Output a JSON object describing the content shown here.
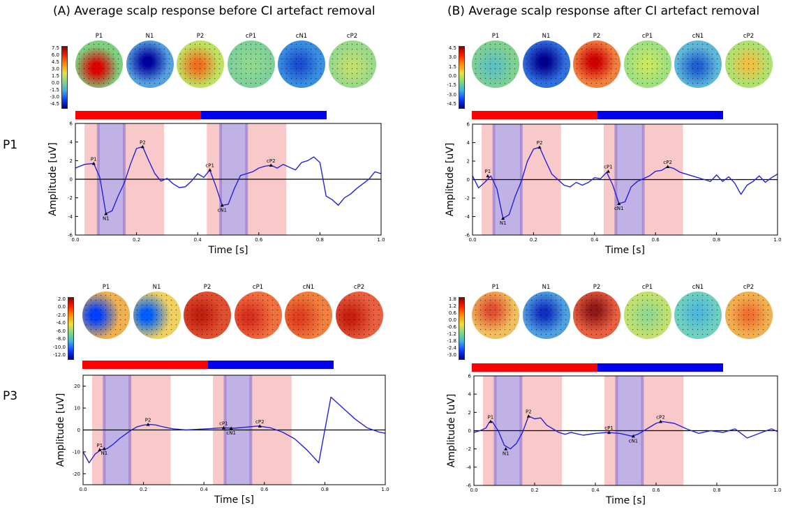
{
  "titles": {
    "left": "(A) Average scalp response before CI artefact removal",
    "right": "(B) Average scalp response after CI artefact removal"
  },
  "row_labels": [
    "P1",
    "P3"
  ],
  "colors": {
    "red_bar": "#ff0000",
    "blue_bar": "#0000ee",
    "shade_red": "#f5a3a3",
    "shade_blue": "#a8a8f0",
    "trace": "#2222dd"
  },
  "panels": [
    {
      "id": "A-P1",
      "colorbar_ticks": [
        "7.5",
        "6.0",
        "4.5",
        "3.0",
        "1.5",
        "0.0",
        "-1.5",
        "-3.0",
        "-4.5"
      ],
      "topos": [
        {
          "label": "P1",
          "base": "#7ecf7e",
          "blob": "#e00000",
          "blob_x": 45,
          "blob_y": 58
        },
        {
          "label": "N1",
          "base": "#55a0dd",
          "blob": "#0000a0",
          "blob_x": 45,
          "blob_y": 45
        },
        {
          "label": "P2",
          "base": "#bfe060",
          "blob": "#f07020",
          "blob_x": 45,
          "blob_y": 52
        },
        {
          "label": "cP1",
          "base": "#80d09a",
          "blob": "#90d890",
          "blob_x": 50,
          "blob_y": 50
        },
        {
          "label": "cN1",
          "base": "#3a8ee0",
          "blob": "#1a4fd0",
          "blob_x": 45,
          "blob_y": 50
        },
        {
          "label": "cP2",
          "base": "#9ad88a",
          "blob": "#c0e070",
          "blob_x": 50,
          "blob_y": 55
        }
      ],
      "chart_data": {
        "type": "line",
        "xlabel": "Time [s]",
        "ylabel": "Amplitude [uV]",
        "xlim": [
          0.0,
          1.0
        ],
        "ylim": [
          -6,
          6
        ],
        "xticks": [
          "0.0",
          "0.2",
          "0.4",
          "0.6",
          "0.8",
          "1.0"
        ],
        "yticks": [
          "-6",
          "-4",
          "-2",
          "0",
          "2",
          "4",
          "6"
        ],
        "x": [
          0.0,
          0.03,
          0.06,
          0.08,
          0.1,
          0.12,
          0.14,
          0.16,
          0.18,
          0.2,
          0.22,
          0.24,
          0.26,
          0.28,
          0.3,
          0.32,
          0.34,
          0.36,
          0.38,
          0.4,
          0.42,
          0.44,
          0.46,
          0.48,
          0.5,
          0.52,
          0.54,
          0.56,
          0.58,
          0.6,
          0.62,
          0.64,
          0.66,
          0.68,
          0.7,
          0.72,
          0.74,
          0.76,
          0.78,
          0.8,
          0.82,
          0.84,
          0.86,
          0.88,
          0.9,
          0.92,
          0.94,
          0.96,
          0.98,
          1.0
        ],
        "y": [
          1.2,
          1.6,
          1.7,
          0.2,
          -3.7,
          -3.4,
          -1.8,
          -0.4,
          1.6,
          3.3,
          3.5,
          2.0,
          0.6,
          -0.2,
          0.1,
          -0.5,
          -0.9,
          -0.8,
          -0.2,
          0.6,
          0.2,
          1.0,
          -0.8,
          -2.8,
          -2.7,
          -1.0,
          0.4,
          0.6,
          0.8,
          1.2,
          1.4,
          1.5,
          1.2,
          1.6,
          1.3,
          1.0,
          1.8,
          2.0,
          2.4,
          1.8,
          -1.8,
          -2.2,
          -2.8,
          -2.0,
          -1.6,
          -1.0,
          -0.5,
          0.0,
          0.8,
          0.6
        ],
        "peaks": [
          {
            "label": "P1",
            "x": 0.06,
            "y": 1.7
          },
          {
            "label": "N1",
            "x": 0.1,
            "y": -3.7
          },
          {
            "label": "P2",
            "x": 0.22,
            "y": 3.5
          },
          {
            "label": "cP1",
            "x": 0.44,
            "y": 1.0
          },
          {
            "label": "cN1",
            "x": 0.48,
            "y": -2.8
          },
          {
            "label": "cP2",
            "x": 0.64,
            "y": 1.5
          }
        ],
        "red_spans": [
          [
            0.03,
            0.29
          ],
          [
            0.43,
            0.69
          ]
        ],
        "blue_spans": [
          [
            0.075,
            0.16
          ],
          [
            0.475,
            0.56
          ]
        ]
      }
    },
    {
      "id": "B-P1",
      "colorbar_ticks": [
        "4.5",
        "3.0",
        "1.5",
        "0.0",
        "-1.5",
        "-3.0",
        "-4.5"
      ],
      "topos": [
        {
          "label": "P1",
          "base": "#80d090",
          "blob": "#60c0c0",
          "blob_x": 45,
          "blob_y": 55
        },
        {
          "label": "N1",
          "base": "#3070dd",
          "blob": "#000090",
          "blob_x": 45,
          "blob_y": 45
        },
        {
          "label": "P2",
          "base": "#f08040",
          "blob": "#d00000",
          "blob_x": 45,
          "blob_y": 45
        },
        {
          "label": "cP1",
          "base": "#a0e080",
          "blob": "#c8e860",
          "blob_x": 50,
          "blob_y": 50
        },
        {
          "label": "cN1",
          "base": "#60b8d8",
          "blob": "#2060d0",
          "blob_x": 48,
          "blob_y": 55
        },
        {
          "label": "cP2",
          "base": "#b0e070",
          "blob": "#f0c040",
          "blob_x": 50,
          "blob_y": 50
        }
      ],
      "chart_data": {
        "type": "line",
        "xlabel": "Time [s]",
        "ylabel": "Amplitude [uV]",
        "xlim": [
          0.0,
          1.0
        ],
        "ylim": [
          -6,
          6
        ],
        "xticks": [
          "0.0",
          "0.2",
          "0.4",
          "0.6",
          "0.8",
          "1.0"
        ],
        "yticks": [
          "-6",
          "-4",
          "-2",
          "0",
          "2",
          "4",
          "6"
        ],
        "x": [
          0.0,
          0.02,
          0.04,
          0.06,
          0.08,
          0.1,
          0.12,
          0.14,
          0.16,
          0.18,
          0.2,
          0.22,
          0.24,
          0.26,
          0.28,
          0.3,
          0.32,
          0.34,
          0.36,
          0.38,
          0.4,
          0.42,
          0.44,
          0.46,
          0.48,
          0.5,
          0.52,
          0.54,
          0.56,
          0.58,
          0.6,
          0.62,
          0.64,
          0.66,
          0.68,
          0.7,
          0.72,
          0.74,
          0.76,
          0.78,
          0.8,
          0.82,
          0.84,
          0.86,
          0.88,
          0.9,
          0.92,
          0.94,
          0.96,
          0.98,
          1.0
        ],
        "y": [
          0.4,
          -0.9,
          -0.3,
          0.4,
          -1.0,
          -4.2,
          -3.8,
          -1.8,
          -0.2,
          2.0,
          3.3,
          3.5,
          2.0,
          0.6,
          0.0,
          -0.6,
          -0.8,
          -0.3,
          -0.6,
          -0.3,
          0.2,
          0.1,
          0.8,
          -0.6,
          -2.6,
          -2.4,
          -0.8,
          -0.2,
          0.1,
          0.4,
          0.9,
          1.0,
          1.4,
          1.2,
          0.8,
          0.6,
          0.4,
          0.2,
          0.0,
          -0.2,
          0.5,
          -0.2,
          0.3,
          -0.4,
          -1.6,
          -0.6,
          -0.2,
          0.4,
          -0.3,
          0.2,
          0.6
        ],
        "peaks": [
          {
            "label": "P1",
            "x": 0.05,
            "y": 0.4
          },
          {
            "label": "N1",
            "x": 0.1,
            "y": -4.2
          },
          {
            "label": "P2",
            "x": 0.22,
            "y": 3.5
          },
          {
            "label": "cP1",
            "x": 0.445,
            "y": 0.9
          },
          {
            "label": "cN1",
            "x": 0.48,
            "y": -2.6
          },
          {
            "label": "cP2",
            "x": 0.64,
            "y": 1.4
          }
        ],
        "red_spans": [
          [
            0.03,
            0.29
          ],
          [
            0.43,
            0.69
          ]
        ],
        "blue_spans": [
          [
            0.07,
            0.16
          ],
          [
            0.47,
            0.56
          ]
        ]
      }
    },
    {
      "id": "A-P3",
      "colorbar_ticks": [
        "2.0",
        "0.0",
        "-2.0",
        "-4.0",
        "-6.0",
        "-8.0",
        "-10.0",
        "-12.0"
      ],
      "topos": [
        {
          "label": "P1",
          "base": "#f0b050",
          "blob": "#0040ff",
          "blob_x": 28,
          "blob_y": 50
        },
        {
          "label": "N1",
          "base": "#f0d060",
          "blob": "#0060ff",
          "blob_x": 28,
          "blob_y": 50
        },
        {
          "label": "P2",
          "base": "#e05030",
          "blob": "#c02010",
          "blob_x": 35,
          "blob_y": 50
        },
        {
          "label": "cP1",
          "base": "#f07040",
          "blob": "#d83020",
          "blob_x": 30,
          "blob_y": 55
        },
        {
          "label": "cN1",
          "base": "#f08040",
          "blob": "#e04020",
          "blob_x": 30,
          "blob_y": 55
        },
        {
          "label": "cP2",
          "base": "#e86040",
          "blob": "#c82010",
          "blob_x": 30,
          "blob_y": 55
        }
      ],
      "chart_data": {
        "type": "line",
        "xlabel": "Time [s]",
        "ylabel": "Amplitude [uV]",
        "xlim": [
          0.0,
          1.0
        ],
        "ylim": [
          -25,
          25
        ],
        "xticks": [
          "0.0",
          "0.2",
          "0.4",
          "0.6",
          "0.8",
          "1.0"
        ],
        "yticks": [
          "-20",
          "-10",
          "0",
          "10",
          "20"
        ],
        "x": [
          0.0,
          0.02,
          0.04,
          0.06,
          0.08,
          0.1,
          0.12,
          0.14,
          0.16,
          0.18,
          0.2,
          0.22,
          0.24,
          0.26,
          0.28,
          0.3,
          0.34,
          0.38,
          0.42,
          0.46,
          0.5,
          0.54,
          0.58,
          0.62,
          0.66,
          0.7,
          0.74,
          0.76,
          0.78,
          0.8,
          0.82,
          0.86,
          0.9,
          0.94,
          0.98,
          1.0
        ],
        "y": [
          -10,
          -15,
          -11,
          -9,
          -8.5,
          -6.5,
          -4,
          -2,
          0,
          1.5,
          2.2,
          2.5,
          2.3,
          1.6,
          1.0,
          0.5,
          0,
          0.3,
          0.6,
          1.0,
          0.8,
          1.3,
          1.8,
          1.0,
          -1,
          -4,
          -9,
          -12,
          -15,
          0,
          15,
          10,
          5,
          1,
          -1,
          -1.5
        ],
        "peaks": [
          {
            "label": "P1",
            "x": 0.055,
            "y": -9
          },
          {
            "label": "N1",
            "x": 0.07,
            "y": -8.5
          },
          {
            "label": "P2",
            "x": 0.215,
            "y": 2.5
          },
          {
            "label": "cP1",
            "x": 0.465,
            "y": 1.0
          },
          {
            "label": "cN1",
            "x": 0.49,
            "y": 0.8
          },
          {
            "label": "cP2",
            "x": 0.585,
            "y": 1.8
          }
        ],
        "red_spans": [
          [
            0.03,
            0.29
          ],
          [
            0.43,
            0.69
          ]
        ],
        "blue_spans": [
          [
            0.07,
            0.155
          ],
          [
            0.47,
            0.555
          ]
        ]
      }
    },
    {
      "id": "B-P3",
      "colorbar_ticks": [
        "1.8",
        "1.2",
        "0.6",
        "0.0",
        "-0.6",
        "-1.2",
        "-1.8",
        "-2.4",
        "-3.0"
      ],
      "topos": [
        {
          "label": "P1",
          "base": "#f0c060",
          "blob": "#e05030",
          "blob_x": 42,
          "blob_y": 40
        },
        {
          "label": "N1",
          "base": "#50a0e0",
          "blob": "#1030c0",
          "blob_x": 45,
          "blob_y": 45
        },
        {
          "label": "P2",
          "base": "#e86040",
          "blob": "#901818",
          "blob_x": 45,
          "blob_y": 40
        },
        {
          "label": "cP1",
          "base": "#c0e070",
          "blob": "#90d890",
          "blob_x": 50,
          "blob_y": 50
        },
        {
          "label": "cN1",
          "base": "#70d0c0",
          "blob": "#50b8d8",
          "blob_x": 50,
          "blob_y": 45
        },
        {
          "label": "cP2",
          "base": "#f0b050",
          "blob": "#f07030",
          "blob_x": 50,
          "blob_y": 50
        }
      ],
      "chart_data": {
        "type": "line",
        "xlabel": "Time [s]",
        "ylabel": "Amplitude [uV]",
        "xlim": [
          0.0,
          1.0
        ],
        "ylim": [
          -6,
          6
        ],
        "xticks": [
          "0.0",
          "0.2",
          "0.4",
          "0.6",
          "0.8",
          "1.0"
        ],
        "yticks": [
          "-6",
          "-4",
          "-2",
          "0",
          "2",
          "4",
          "6"
        ],
        "x": [
          0.0,
          0.02,
          0.04,
          0.05,
          0.06,
          0.08,
          0.1,
          0.12,
          0.14,
          0.16,
          0.18,
          0.2,
          0.22,
          0.24,
          0.26,
          0.28,
          0.3,
          0.32,
          0.36,
          0.4,
          0.44,
          0.48,
          0.52,
          0.54,
          0.56,
          0.6,
          0.62,
          0.64,
          0.66,
          0.7,
          0.74,
          0.78,
          0.82,
          0.86,
          0.9,
          0.94,
          0.98,
          1.0
        ],
        "y": [
          -0.2,
          0.0,
          0.3,
          0.9,
          1.0,
          0.0,
          -1.6,
          -2.0,
          -1.4,
          -0.2,
          1.6,
          1.3,
          1.4,
          0.6,
          0.2,
          -0.2,
          -0.4,
          -0.2,
          -0.5,
          -0.3,
          -0.2,
          -0.3,
          -0.6,
          -0.4,
          0.0,
          0.8,
          1.0,
          0.9,
          0.8,
          0.2,
          -0.3,
          0.0,
          -0.2,
          0.2,
          -0.8,
          -0.3,
          0.2,
          -0.1
        ],
        "peaks": [
          {
            "label": "P1",
            "x": 0.055,
            "y": 1.0
          },
          {
            "label": "N1",
            "x": 0.105,
            "y": -2.0
          },
          {
            "label": "P2",
            "x": 0.18,
            "y": 1.6
          },
          {
            "label": "cP1",
            "x": 0.445,
            "y": -0.2
          },
          {
            "label": "cN1",
            "x": 0.525,
            "y": -0.6
          },
          {
            "label": "cP2",
            "x": 0.615,
            "y": 1.0
          }
        ],
        "red_spans": [
          [
            0.03,
            0.29
          ],
          [
            0.43,
            0.69
          ]
        ],
        "blue_spans": [
          [
            0.07,
            0.155
          ],
          [
            0.47,
            0.555
          ]
        ]
      }
    }
  ]
}
